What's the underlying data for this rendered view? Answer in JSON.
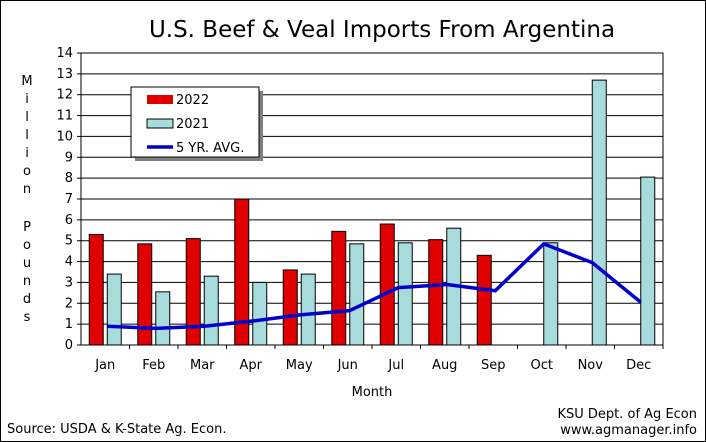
{
  "chart_data": {
    "type": "bar",
    "title": "U.S. Beef & Veal Imports From Argentina",
    "xlabel": "Month",
    "ylabel": "Million Pounds",
    "ylim": [
      0,
      14
    ],
    "yticks": [
      0,
      1,
      2,
      3,
      4,
      5,
      6,
      7,
      8,
      9,
      10,
      11,
      12,
      13,
      14
    ],
    "categories": [
      "Jan",
      "Feb",
      "Mar",
      "Apr",
      "May",
      "Jun",
      "Jul",
      "Aug",
      "Sep",
      "Oct",
      "Nov",
      "Dec"
    ],
    "series": [
      {
        "name": "2022",
        "type": "bar",
        "color": "#e00000",
        "values": [
          5.3,
          4.85,
          5.1,
          7.0,
          3.6,
          5.45,
          5.8,
          5.05,
          4.3,
          null,
          null,
          null
        ]
      },
      {
        "name": "2021",
        "type": "bar",
        "color": "#a8dcdc",
        "values": [
          3.4,
          2.55,
          3.3,
          3.0,
          3.4,
          4.85,
          4.9,
          5.6,
          null,
          4.9,
          12.7,
          8.05
        ]
      },
      {
        "name": "5 YR. AVG.",
        "type": "line",
        "color": "#0000cc",
        "values": [
          0.9,
          0.8,
          0.9,
          1.15,
          1.45,
          1.65,
          2.75,
          2.9,
          2.6,
          4.85,
          3.95,
          2.05
        ]
      }
    ],
    "grid": true,
    "legend_position": "top-left"
  },
  "footer": {
    "source": "Source:  USDA & K-State Ag. Econ.",
    "credit_line1": "KSU Dept. of Ag Econ",
    "credit_line2": "www.agmanager.info"
  }
}
